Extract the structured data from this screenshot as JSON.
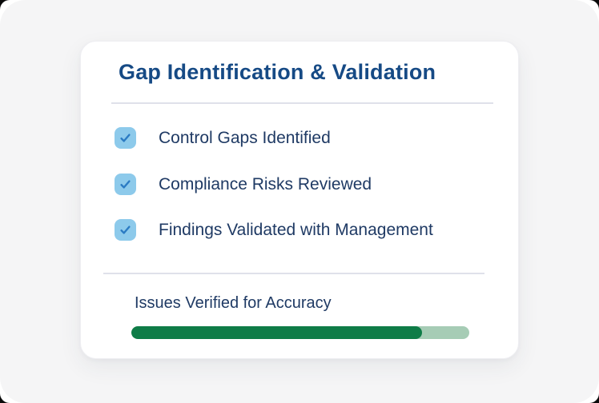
{
  "card": {
    "title": "Gap Identification & Validation",
    "checklist": {
      "items": [
        {
          "label": "Control Gaps Identified",
          "checked": true
        },
        {
          "label": "Compliance Risks Reviewed",
          "checked": true
        },
        {
          "label": "Findings Validated with Management",
          "checked": true
        }
      ]
    },
    "progress": {
      "label": "Issues Verified for Accuracy",
      "percent": 86
    }
  },
  "icons": {
    "checkbox_icon": "checkmark"
  },
  "colors": {
    "page_background": "#f5f5f6",
    "card_background": "#ffffff",
    "title_navy": "#164a85",
    "item_navy": "#1f3a64",
    "checkbox_fill": "#8dcaeb",
    "checkmark_blue": "#2b7bc3",
    "divider": "#dfe1ea",
    "progress_track": "#a6ccb5",
    "progress_fill": "#0e7c47"
  }
}
